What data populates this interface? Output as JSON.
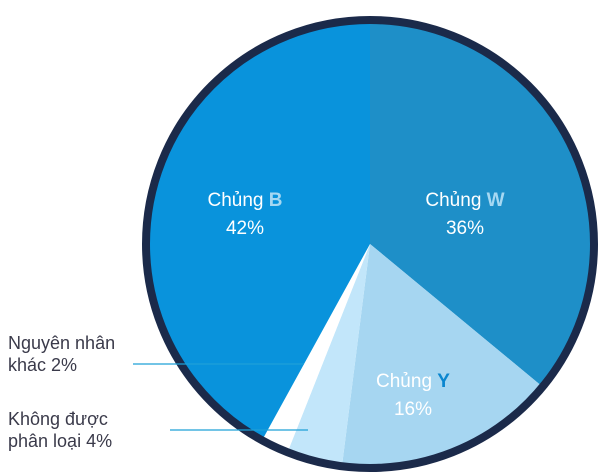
{
  "chart_data": {
    "type": "pie",
    "slices": [
      {
        "key": "w",
        "prefix": "Chủng ",
        "highlight": "W",
        "percent": "36%",
        "value": 36,
        "color": "#1e8fc8",
        "hl_color": "#a6d8f2"
      },
      {
        "key": "y",
        "prefix": "Chủng ",
        "highlight": "Y",
        "percent": "16%",
        "value": 16,
        "color": "#a6d6f1",
        "hl_color": "#0a86cf"
      },
      {
        "key": "unclassified",
        "label": "Không được phân loại 4%",
        "label_lines": [
          "Không được",
          "phân loại 4%"
        ],
        "value": 4,
        "color": "#c2e6fa"
      },
      {
        "key": "other",
        "label": "Nguyên nhân khác 2%",
        "label_lines": [
          "Nguyên nhân",
          "khác 2%"
        ],
        "value": 2,
        "color": "#ffffff"
      },
      {
        "key": "b",
        "prefix": "Chủng ",
        "highlight": "B",
        "percent": "42%",
        "value": 42,
        "color": "#0993dc",
        "hl_color": "#a6d8f2"
      }
    ],
    "border_color": "#1b2a4a",
    "leader_color": "#1ea0d8",
    "text_color": "#3a3a4a"
  }
}
